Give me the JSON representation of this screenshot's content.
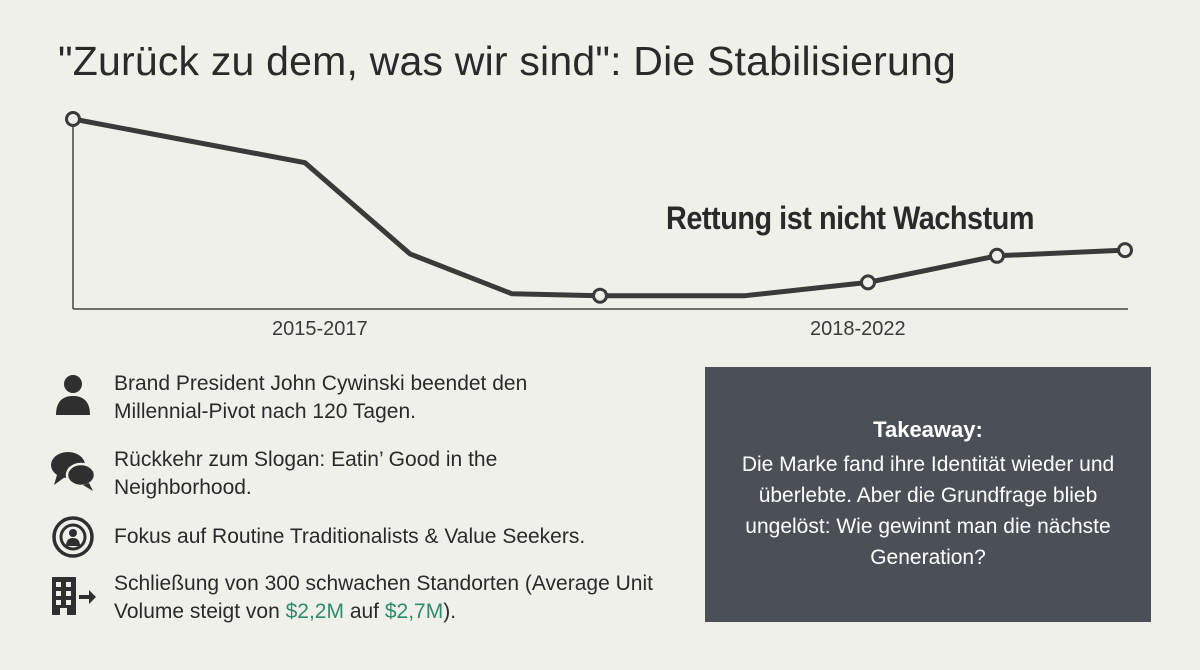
{
  "title": "\"Zurück zu dem, was wir sind\": Die Stabilisierung",
  "chart_data": {
    "type": "line",
    "annotation": "Rettung ist nicht Wachstum",
    "periods": [
      "2015-2017",
      "2018-2022"
    ],
    "series": [
      {
        "values": [
          1.0,
          0.77,
          0.29,
          0.08,
          0.07,
          0.07,
          0.14,
          0.28,
          0.31
        ],
        "markers": [
          0,
          4,
          6,
          7,
          8
        ]
      }
    ],
    "line_color": "#3a3a3a"
  },
  "items": [
    {
      "icon": "person-icon",
      "text": "Brand President John Cywinski beendet den Millennial-Pivot nach 120 Tagen."
    },
    {
      "icon": "speech-bubbles-icon",
      "text": "Rückkehr zum Slogan: Eatin’ Good in the Neighborhood."
    },
    {
      "icon": "target-audience-icon",
      "text": "Fokus auf Routine Traditionalists & Value Seekers."
    },
    {
      "icon": "building-exit-icon",
      "text_a": "Schließung von 300 schwachen Standorten (Average Unit Volume steigt von ",
      "val1": "$2,2M",
      "text_b": " auf ",
      "val2": "$2,7M",
      "text_c": ")."
    }
  ],
  "takeaway": {
    "heading": "Takeaway:",
    "body": "Die Marke fand ihre Identität wieder und überlebte. Aber die Grundfrage blieb ungelöst: Wie gewinnt man die nächste Generation?"
  },
  "colors": {
    "accent_money": "#2e8b6e",
    "takeaway_bg": "#4a5056"
  }
}
